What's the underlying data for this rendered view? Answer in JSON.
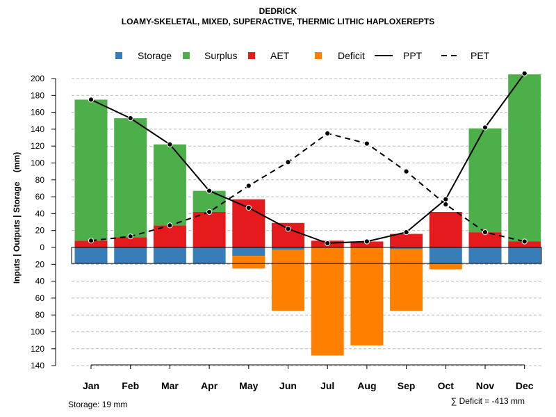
{
  "chart_data": {
    "type": "bar",
    "title": "DEDRICK",
    "subtitle": "LOAMY-SKELETAL, MIXED, SUPERACTIVE, THERMIC LITHIC HAPLOXEREPTS",
    "xlabel": "",
    "ylabel": "Inputs | Outputs | Storage    (mm)",
    "categories": [
      "Jan",
      "Feb",
      "Mar",
      "Apr",
      "May",
      "Jun",
      "Jul",
      "Aug",
      "Sep",
      "Oct",
      "Nov",
      "Dec"
    ],
    "ylim": [
      -140,
      210
    ],
    "yticks": [
      200,
      180,
      160,
      140,
      120,
      100,
      80,
      60,
      40,
      20,
      0,
      -20,
      -40,
      -60,
      -80,
      -100,
      -120,
      -140
    ],
    "ytick_labels": [
      "200",
      "180",
      "160",
      "140",
      "120",
      "100",
      "80",
      "60",
      "40",
      "20",
      "0",
      "20",
      "40",
      "60",
      "80",
      "100",
      "120",
      "140"
    ],
    "legend": [
      {
        "label": "Storage",
        "kind": "square",
        "color": "#377EB8"
      },
      {
        "label": "Surplus",
        "kind": "square",
        "color": "#4DAF4A"
      },
      {
        "label": "AET",
        "kind": "square",
        "color": "#E41A1C"
      },
      {
        "label": "Deficit",
        "kind": "square",
        "color": "#FF7F00"
      },
      {
        "label": "PPT",
        "kind": "solid"
      },
      {
        "label": "PET",
        "kind": "dashed"
      }
    ],
    "series": [
      {
        "name": "AET",
        "values": [
          8,
          12,
          26,
          42,
          57,
          29,
          8,
          7,
          16,
          42,
          18,
          7
        ]
      },
      {
        "name": "Surplus",
        "values": [
          167,
          141,
          96,
          25,
          0,
          0,
          0,
          0,
          0,
          0,
          123,
          198
        ]
      },
      {
        "name": "Storage",
        "values": [
          -19,
          -19,
          -19,
          -19,
          -10,
          -3,
          0,
          0,
          -2,
          -19,
          -19,
          -19
        ]
      },
      {
        "name": "Deficit",
        "values": [
          0,
          0,
          0,
          0,
          -15,
          -72,
          -128,
          -116,
          -73,
          -7,
          0,
          0
        ]
      },
      {
        "name": "PPT",
        "values": [
          175,
          153,
          122,
          67,
          47,
          22,
          5,
          7,
          18,
          57,
          142,
          206
        ]
      },
      {
        "name": "PET",
        "values": [
          8,
          13,
          26,
          42,
          73,
          101,
          135,
          123,
          90,
          51,
          18,
          7
        ]
      }
    ],
    "storage_capacity": -19,
    "footnote_left": "Storage: 19 mm",
    "footnote_right": "∑ Deficit = -413 mm"
  }
}
